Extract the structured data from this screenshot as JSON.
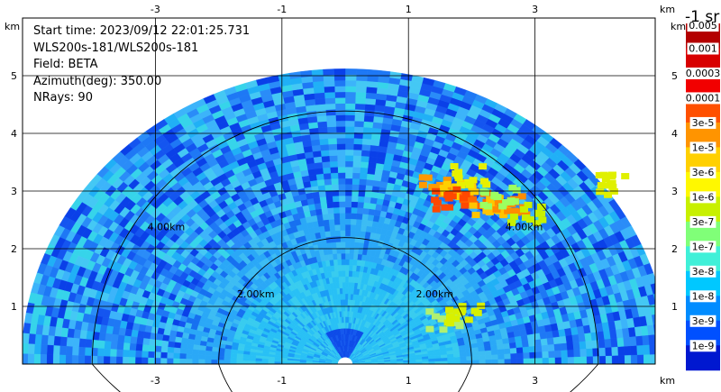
{
  "info": {
    "start_time": "Start time: 2023/09/12 22:01:25.731",
    "instrument": "WLS200s-181/WLS200s-181",
    "field": "Field: BETA",
    "azimuth": "Azimuth(deg): 350.00",
    "nrays": "NRays: 90"
  },
  "axes": {
    "x_ticks": [
      "-3",
      "-1",
      "1",
      "3"
    ],
    "x_tick_values": [
      -3,
      -1,
      1,
      3
    ],
    "y_ticks": [
      "1",
      "2",
      "3",
      "4",
      "5"
    ],
    "y_tick_values": [
      1,
      2,
      3,
      4,
      5
    ],
    "unit": "km",
    "x_range": [
      -5.1,
      4.9
    ],
    "y_range": [
      0,
      6
    ]
  },
  "range_rings": [
    {
      "radius_km": 2,
      "label": "2.00km"
    },
    {
      "radius_km": 4,
      "label": "4.00km"
    }
  ],
  "colorbar": {
    "title": "-1 sr",
    "labels": [
      "0.005",
      "0.001",
      "0.0003",
      "0.0001",
      "3e-5",
      "1e-5",
      "3e-6",
      "1e-6",
      "3e-7",
      "1e-7",
      "3e-8",
      "1e-8",
      "3e-9",
      "1e-9"
    ],
    "colors": [
      "#b40000",
      "#d80000",
      "#f20000",
      "#ff5000",
      "#ff9400",
      "#ffd000",
      "#fff800",
      "#c8f000",
      "#80ff78",
      "#40f0d8",
      "#00c8ff",
      "#008cff",
      "#0050ff",
      "#0018d0"
    ]
  }
}
